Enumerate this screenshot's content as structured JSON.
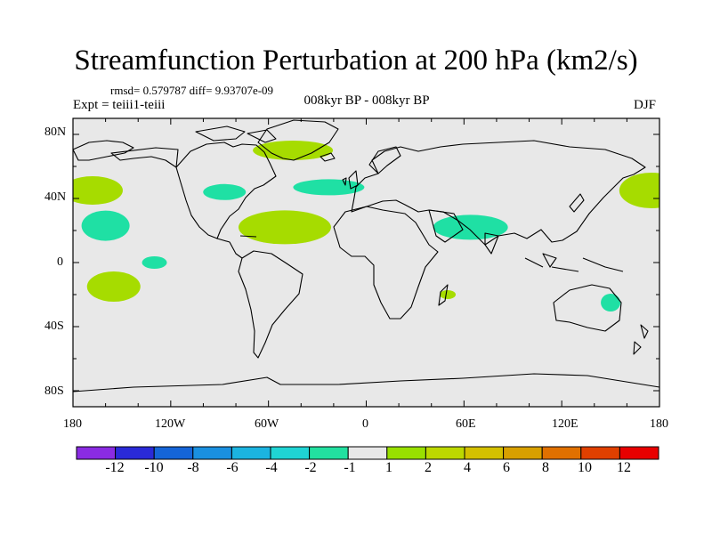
{
  "title": "Streamfunction Perturbation at 200 hPa (km2/s)",
  "stats": "rmsd= 0.579787 diff= 9.93707e-09",
  "experiment": "Expt = teiii1-teiii",
  "period": "008kyr BP - 008kyr BP",
  "season": "DJF",
  "map": {
    "projection": "cylindrical-equidistant",
    "lon_range": [
      -180,
      180
    ],
    "lat_range": [
      -90,
      90
    ],
    "background_color": "#e8e8e8",
    "lat_labels": [
      "80N",
      "40N",
      "0",
      "40S",
      "80S"
    ],
    "lon_labels": [
      "180",
      "120W",
      "60W",
      "0",
      "60E",
      "120E",
      "180"
    ]
  },
  "anomalies": [
    {
      "lon": -168,
      "lat": 45,
      "sign": "positive",
      "level": "1 to 2"
    },
    {
      "lon": -160,
      "lat": 23,
      "sign": "negative",
      "level": "-2 to -1"
    },
    {
      "lon": -130,
      "lat": 0,
      "sign": "negative",
      "level": "-2 to -1"
    },
    {
      "lon": -155,
      "lat": -15,
      "sign": "positive",
      "level": "1 to 2"
    },
    {
      "lon": -87,
      "lat": 44,
      "sign": "negative",
      "level": "-2 to -1"
    },
    {
      "lon": -45,
      "lat": 70,
      "sign": "positive",
      "level": "1 to 2"
    },
    {
      "lon": -50,
      "lat": 22,
      "sign": "positive",
      "level": "1 to 2"
    },
    {
      "lon": -23,
      "lat": 47,
      "sign": "negative",
      "level": "-2 to -1"
    },
    {
      "lon": 64,
      "lat": 22,
      "sign": "negative",
      "level": "-2 to -1"
    },
    {
      "lon": 50,
      "lat": -20,
      "sign": "positive",
      "level": "1 to 2"
    },
    {
      "lon": 150,
      "lat": -25,
      "sign": "negative",
      "level": "-2 to -1"
    },
    {
      "lon": 175,
      "lat": 45,
      "sign": "positive",
      "level": "1 to 2"
    }
  ],
  "colorbar": {
    "colors": [
      "#8a2be2",
      "#2a2ad8",
      "#1565d8",
      "#1a90e0",
      "#1bb4e0",
      "#1fd4d4",
      "#22e0a0",
      "#e8e8e8",
      "#99e000",
      "#bcd800",
      "#d4c000",
      "#d8a000",
      "#e07000",
      "#e04000",
      "#e80000"
    ],
    "labels": [
      "-12",
      "-10",
      "-8",
      "-6",
      "-4",
      "-2",
      "-1",
      "1",
      "2",
      "4",
      "6",
      "8",
      "10",
      "12"
    ]
  }
}
